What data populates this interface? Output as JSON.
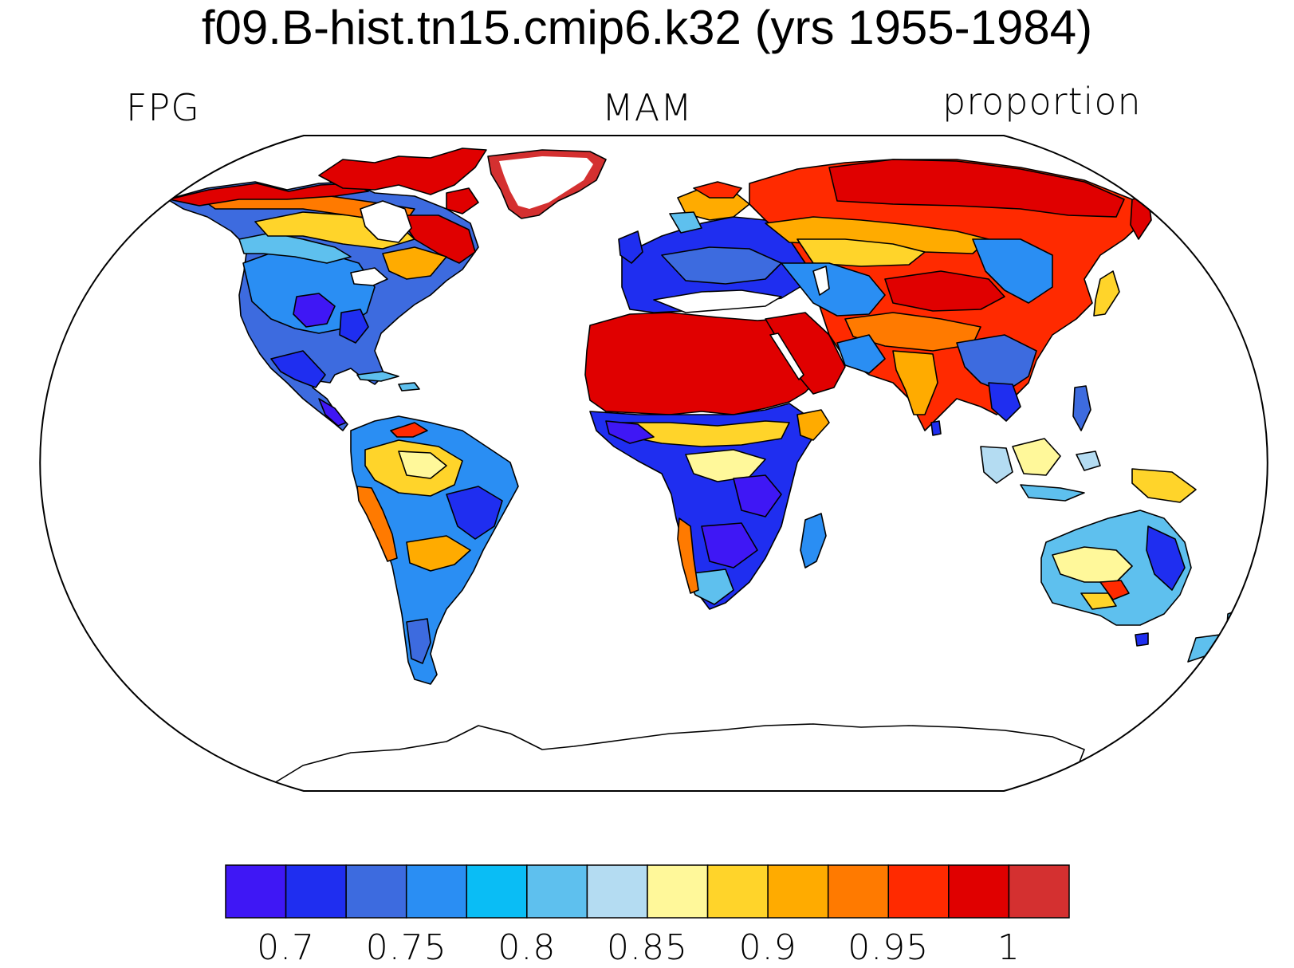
{
  "title": "f09.B-hist.tn15.cmip6.k32 (yrs 1955-1984)",
  "left_label": "FPG",
  "center_label": "MAM",
  "right_label": "proportion",
  "projection": "robinson",
  "colorbar": {
    "colors": [
      "#3f17f5",
      "#1f2ef0",
      "#3d6bdf",
      "#2a8ef3",
      "#0abdf5",
      "#5ec0ee",
      "#b4dcf2",
      "#fff89a",
      "#ffd42a",
      "#ffab00",
      "#ff7a00",
      "#ff2a00",
      "#e00000",
      "#d43030"
    ],
    "tick_labels": [
      "0.7",
      "0.75",
      "0.8",
      "0.85",
      "0.9",
      "0.95",
      "1"
    ]
  }
}
